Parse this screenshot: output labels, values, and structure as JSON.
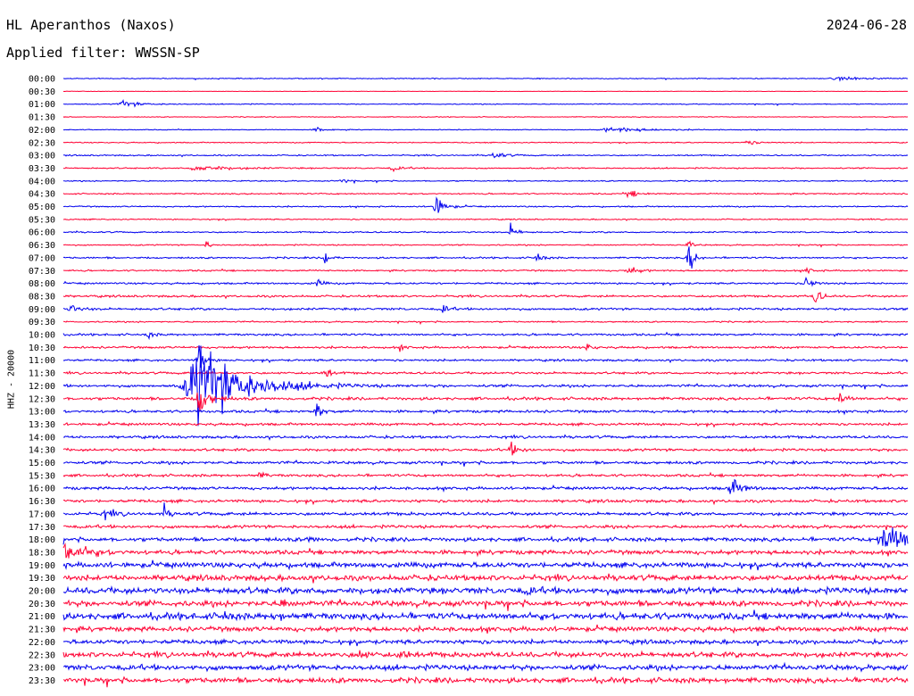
{
  "header": {
    "station": "HL Aperanthos (Naxos)",
    "date": "2024-06-28",
    "filter": "Applied filter: WWSSN-SP"
  },
  "chart_data": {
    "type": "line",
    "title": "HL Aperanthos (Naxos)",
    "ylabel": "HHZ - 20000",
    "x_span_minutes": 30,
    "colors": {
      "even_rows": "#0000ee",
      "odd_rows": "#ff0033"
    },
    "rows": [
      {
        "label": "00:00",
        "noise": 0.35,
        "events": [
          {
            "x": 0.92,
            "a": 1.5,
            "w": 0.03
          }
        ]
      },
      {
        "label": "00:30",
        "noise": 0.15,
        "events": []
      },
      {
        "label": "01:00",
        "noise": 0.35,
        "events": [
          {
            "x": 0.07,
            "a": 2.5,
            "w": 0.02
          }
        ]
      },
      {
        "label": "01:30",
        "noise": 0.3,
        "events": []
      },
      {
        "label": "02:00",
        "noise": 0.3,
        "events": [
          {
            "x": 0.3,
            "a": 2,
            "w": 0.01
          },
          {
            "x": 0.65,
            "a": 2,
            "w": 0.04
          }
        ]
      },
      {
        "label": "02:30",
        "noise": 0.4,
        "events": [
          {
            "x": 0.81,
            "a": 2,
            "w": 0.01
          }
        ]
      },
      {
        "label": "03:00",
        "noise": 0.5,
        "events": [
          {
            "x": 0.51,
            "a": 3,
            "w": 0.01
          }
        ]
      },
      {
        "label": "03:30",
        "noise": 0.5,
        "events": [
          {
            "x": 0.16,
            "a": 2.5,
            "w": 0.03
          },
          {
            "x": 0.39,
            "a": 2,
            "w": 0.01
          }
        ]
      },
      {
        "label": "04:00",
        "noise": 0.45,
        "events": [
          {
            "x": 0.33,
            "a": 2.5,
            "w": 0.006
          }
        ]
      },
      {
        "label": "04:30",
        "noise": 0.5,
        "events": [
          {
            "x": 0.67,
            "a": 3,
            "w": 0.01
          }
        ]
      },
      {
        "label": "05:00",
        "noise": 0.5,
        "events": [
          {
            "x": 0.44,
            "a": 11,
            "w": 0.008
          }
        ]
      },
      {
        "label": "05:30",
        "noise": 0.45,
        "events": []
      },
      {
        "label": "06:00",
        "noise": 0.55,
        "events": [
          {
            "x": 0.53,
            "a": 6,
            "w": 0.006
          }
        ]
      },
      {
        "label": "06:30",
        "noise": 0.5,
        "events": [
          {
            "x": 0.17,
            "a": 4,
            "w": 0.004
          },
          {
            "x": 0.74,
            "a": 4,
            "w": 0.004
          }
        ]
      },
      {
        "label": "07:00",
        "noise": 0.65,
        "events": [
          {
            "x": 0.31,
            "a": 9,
            "w": 0.004
          },
          {
            "x": 0.56,
            "a": 6,
            "w": 0.005
          },
          {
            "x": 0.74,
            "a": 16,
            "w": 0.005
          }
        ]
      },
      {
        "label": "07:30",
        "noise": 0.6,
        "events": [
          {
            "x": 0.67,
            "a": 3,
            "w": 0.01
          },
          {
            "x": 0.88,
            "a": 3,
            "w": 0.005
          }
        ]
      },
      {
        "label": "08:00",
        "noise": 0.7,
        "events": [
          {
            "x": 0.3,
            "a": 4,
            "w": 0.005
          },
          {
            "x": 0.88,
            "a": 7,
            "w": 0.006
          }
        ]
      },
      {
        "label": "08:30",
        "noise": 0.8,
        "events": [
          {
            "x": 0.89,
            "a": 9,
            "w": 0.005
          }
        ]
      },
      {
        "label": "09:00",
        "noise": 0.85,
        "events": [
          {
            "x": 0.01,
            "a": 3,
            "w": 0.01
          },
          {
            "x": 0.45,
            "a": 4,
            "w": 0.005
          }
        ]
      },
      {
        "label": "09:30",
        "noise": 0.55,
        "events": []
      },
      {
        "label": "10:00",
        "noise": 0.8,
        "events": [
          {
            "x": 0.1,
            "a": 3,
            "w": 0.005
          }
        ]
      },
      {
        "label": "10:30",
        "noise": 0.8,
        "events": [
          {
            "x": 0.4,
            "a": 2,
            "w": 0.005
          },
          {
            "x": 0.62,
            "a": 3,
            "w": 0.005
          }
        ]
      },
      {
        "label": "11:00",
        "noise": 0.8,
        "events": [
          {
            "x": 0.16,
            "a": 14,
            "w": 0.005
          }
        ]
      },
      {
        "label": "11:30",
        "noise": 0.85,
        "events": [
          {
            "x": 0.31,
            "a": 6,
            "w": 0.005
          }
        ]
      },
      {
        "label": "12:00",
        "noise": 1.0,
        "events": [
          {
            "x": 0.16,
            "a": 34,
            "w": 0.045
          }
        ]
      },
      {
        "label": "12:30",
        "noise": 1.1,
        "events": [
          {
            "x": 0.16,
            "a": 14,
            "w": 0.01
          },
          {
            "x": 0.92,
            "a": 6,
            "w": 0.006
          }
        ]
      },
      {
        "label": "13:00",
        "noise": 1.0,
        "events": [
          {
            "x": 0.3,
            "a": 8,
            "w": 0.005
          }
        ]
      },
      {
        "label": "13:30",
        "noise": 0.95,
        "events": []
      },
      {
        "label": "14:00",
        "noise": 1.0,
        "events": []
      },
      {
        "label": "14:30",
        "noise": 1.0,
        "events": [
          {
            "x": 0.53,
            "a": 5,
            "w": 0.008
          }
        ]
      },
      {
        "label": "15:00",
        "noise": 1.1,
        "events": []
      },
      {
        "label": "15:30",
        "noise": 1.0,
        "events": [
          {
            "x": 0.23,
            "a": 3,
            "w": 0.006
          }
        ]
      },
      {
        "label": "16:00",
        "noise": 1.1,
        "events": [
          {
            "x": 0.79,
            "a": 7,
            "w": 0.012
          }
        ]
      },
      {
        "label": "16:30",
        "noise": 1.1,
        "events": []
      },
      {
        "label": "17:00",
        "noise": 1.2,
        "events": [
          {
            "x": 0.05,
            "a": 3,
            "w": 0.01
          },
          {
            "x": 0.12,
            "a": 5,
            "w": 0.004
          }
        ]
      },
      {
        "label": "17:30",
        "noise": 1.2,
        "events": []
      },
      {
        "label": "18:00",
        "noise": 1.5,
        "events": [
          {
            "x": 0.29,
            "a": 3,
            "w": 0.006
          },
          {
            "x": 0.975,
            "a": 13,
            "w": 0.03
          }
        ]
      },
      {
        "label": "18:30",
        "noise": 1.6,
        "events": [
          {
            "x": 0.0,
            "a": 9,
            "w": 0.02
          }
        ]
      },
      {
        "label": "19:00",
        "noise": 2.0,
        "events": []
      },
      {
        "label": "19:30",
        "noise": 2.1,
        "events": []
      },
      {
        "label": "20:00",
        "noise": 2.4,
        "events": [
          {
            "x": 0.55,
            "a": 3,
            "w": 0.005
          }
        ]
      },
      {
        "label": "20:30",
        "noise": 2.2,
        "events": [
          {
            "x": 0.26,
            "a": 5,
            "w": 0.005
          }
        ]
      },
      {
        "label": "21:00",
        "noise": 2.5,
        "events": [
          {
            "x": 0.19,
            "a": 4,
            "w": 0.005
          },
          {
            "x": 0.25,
            "a": 5,
            "w": 0.005
          }
        ]
      },
      {
        "label": "21:30",
        "noise": 1.8,
        "events": []
      },
      {
        "label": "22:00",
        "noise": 1.6,
        "events": []
      },
      {
        "label": "22:30",
        "noise": 2.0,
        "events": [
          {
            "x": 0.35,
            "a": 4,
            "w": 0.006
          },
          {
            "x": 0.4,
            "a": 5,
            "w": 0.005
          }
        ]
      },
      {
        "label": "23:00",
        "noise": 2.0,
        "events": []
      },
      {
        "label": "23:30",
        "noise": 2.0,
        "events": []
      }
    ]
  }
}
